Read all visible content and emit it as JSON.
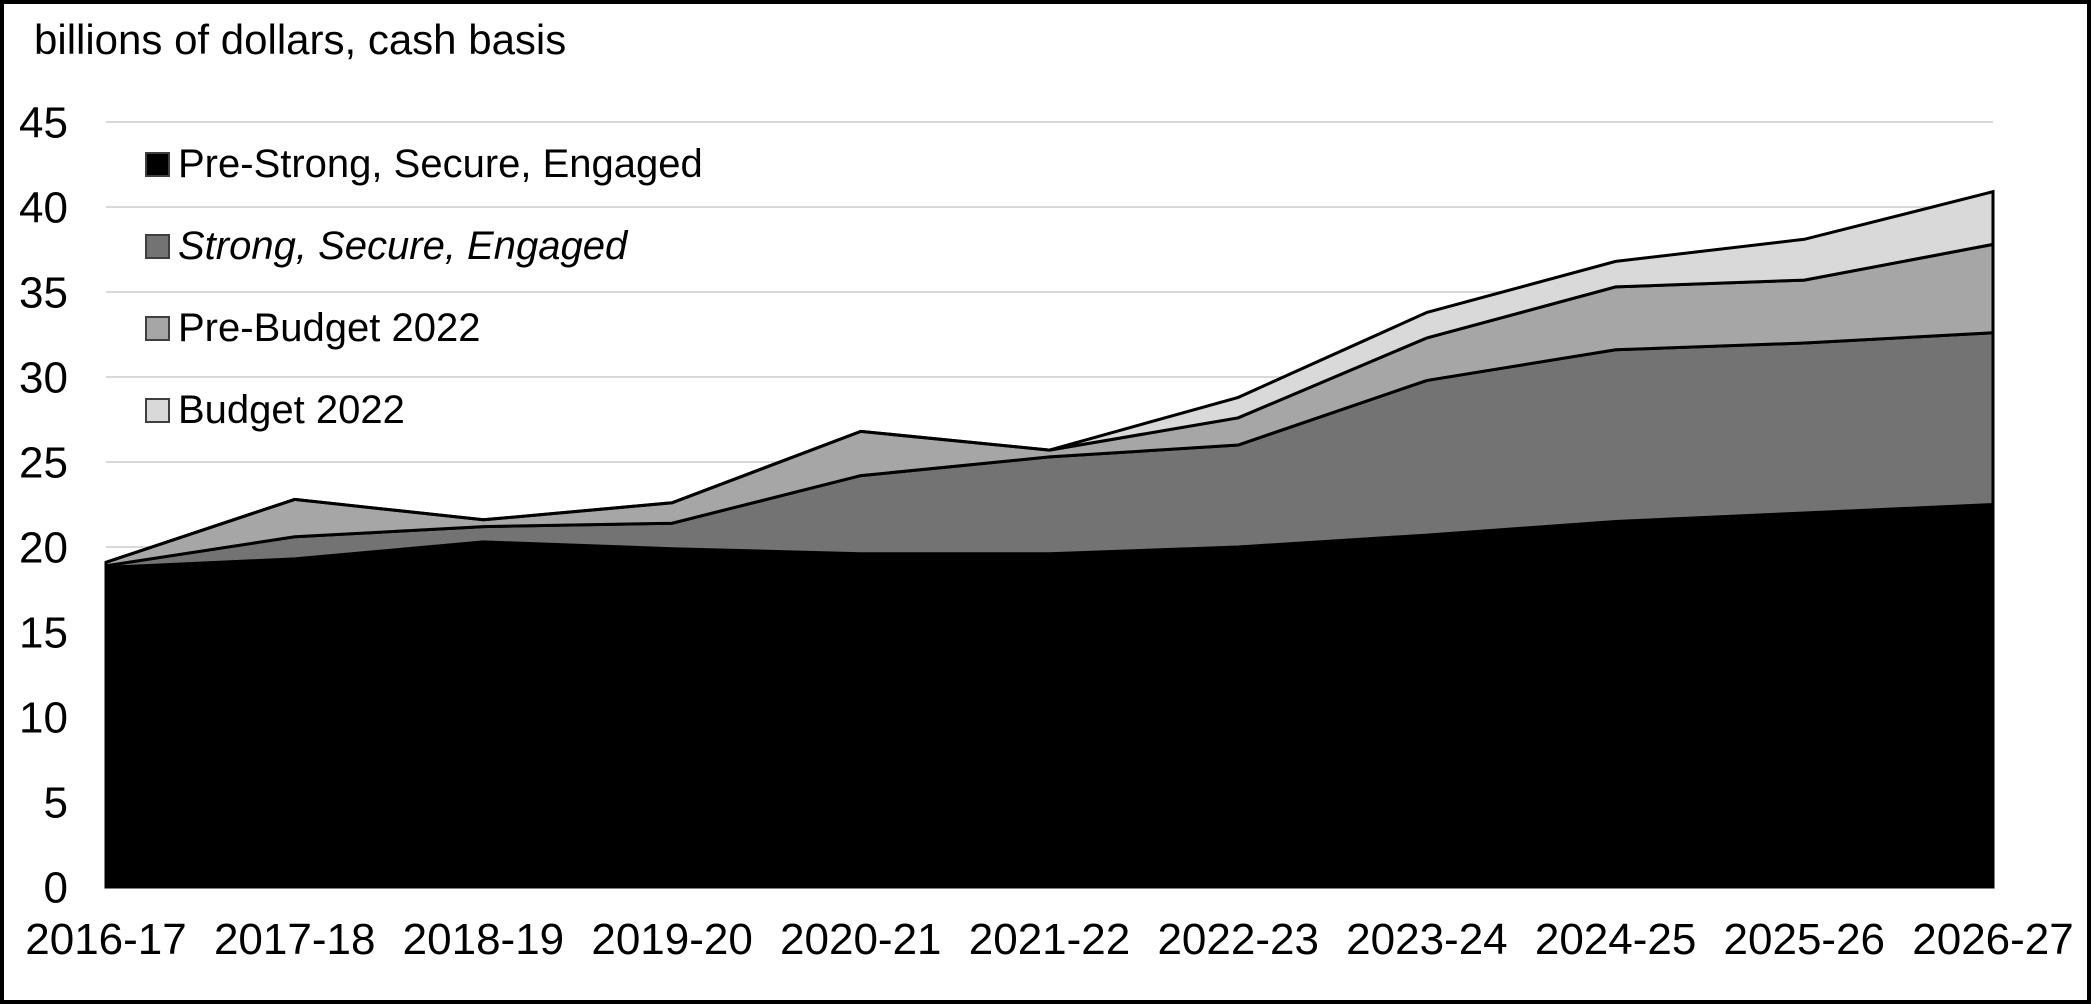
{
  "title": "billions of dollars, cash basis",
  "chart_data": {
    "type": "area",
    "stacked": true,
    "title": "billions of dollars, cash basis",
    "xlabel": "",
    "ylabel": "billions of dollars",
    "categories": [
      "2016-17",
      "2017-18",
      "2018-19",
      "2019-20",
      "2020-21",
      "2021-22",
      "2022-23",
      "2023-24",
      "2024-25",
      "2025-26",
      "2026-27"
    ],
    "series": [
      {
        "name": "Pre-Strong, Secure, Engaged",
        "italic": false,
        "color": "#000000",
        "values": [
          18.8,
          19.3,
          20.3,
          19.9,
          19.6,
          19.6,
          20.0,
          20.7,
          21.5,
          22.0,
          22.5
        ]
      },
      {
        "name": "Strong, Secure, Engaged",
        "italic": true,
        "color": "#737373",
        "values": [
          0.1,
          1.3,
          0.9,
          1.5,
          4.6,
          5.7,
          6.0,
          9.1,
          10.1,
          10.0,
          10.1
        ]
      },
      {
        "name": "Pre-Budget 2022",
        "italic": false,
        "color": "#a6a6a6",
        "values": [
          0.2,
          2.2,
          0.4,
          1.2,
          2.6,
          0.4,
          1.6,
          2.5,
          3.7,
          3.7,
          5.2
        ]
      },
      {
        "name": "Budget 2022",
        "italic": false,
        "color": "#d9d9d9",
        "values": [
          0.0,
          0.0,
          0.0,
          0.0,
          0.0,
          0.0,
          1.2,
          1.5,
          1.5,
          2.4,
          3.1
        ]
      }
    ],
    "stacked_totals": [
      19.1,
      22.8,
      21.6,
      22.6,
      26.8,
      25.7,
      28.8,
      33.8,
      36.8,
      38.1,
      40.9
    ],
    "ylim": [
      0,
      45
    ],
    "yticks": [
      0,
      5,
      10,
      15,
      20,
      25,
      30,
      35,
      40,
      45
    ],
    "grid": true,
    "gridline_color": "#d9d9d9",
    "outline_color": "#000000",
    "legend_position": "inside-top-left"
  }
}
